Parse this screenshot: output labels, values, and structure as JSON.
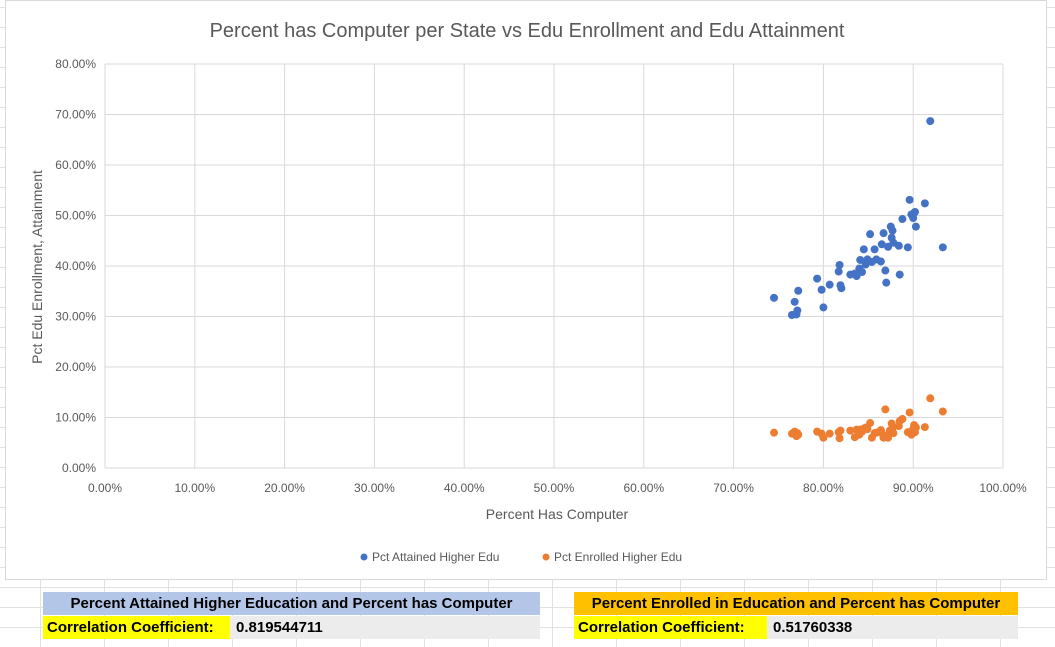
{
  "chart_data": {
    "type": "scatter",
    "title": "Percent has Computer per State vs Edu Enrollment and Edu Attainment",
    "xlabel": "Percent Has Computer",
    "ylabel": "Pct Edu Enrollment, Attainment",
    "xlim": [
      0,
      1
    ],
    "ylim": [
      0,
      0.8
    ],
    "x_ticks": [
      "0.00%",
      "10.00%",
      "20.00%",
      "30.00%",
      "40.00%",
      "50.00%",
      "60.00%",
      "70.00%",
      "80.00%",
      "90.00%",
      "100.00%"
    ],
    "y_ticks": [
      "0.00%",
      "10.00%",
      "20.00%",
      "30.00%",
      "40.00%",
      "50.00%",
      "60.00%",
      "70.00%",
      "80.00%"
    ],
    "grid": true,
    "legend_position": "bottom",
    "series": [
      {
        "name": "Pct Attained Higher Edu",
        "color": "#4472c4",
        "points": [
          [
            0.745,
            0.337
          ],
          [
            0.765,
            0.303
          ],
          [
            0.768,
            0.329
          ],
          [
            0.77,
            0.304
          ],
          [
            0.771,
            0.312
          ],
          [
            0.772,
            0.351
          ],
          [
            0.793,
            0.375
          ],
          [
            0.798,
            0.353
          ],
          [
            0.8,
            0.318
          ],
          [
            0.807,
            0.363
          ],
          [
            0.817,
            0.389
          ],
          [
            0.818,
            0.402
          ],
          [
            0.819,
            0.362
          ],
          [
            0.82,
            0.356
          ],
          [
            0.83,
            0.383
          ],
          [
            0.835,
            0.385
          ],
          [
            0.837,
            0.38
          ],
          [
            0.84,
            0.395
          ],
          [
            0.841,
            0.412
          ],
          [
            0.843,
            0.388
          ],
          [
            0.845,
            0.433
          ],
          [
            0.847,
            0.403
          ],
          [
            0.849,
            0.413
          ],
          [
            0.852,
            0.463
          ],
          [
            0.854,
            0.408
          ],
          [
            0.857,
            0.433
          ],
          [
            0.859,
            0.413
          ],
          [
            0.864,
            0.409
          ],
          [
            0.865,
            0.443
          ],
          [
            0.867,
            0.465
          ],
          [
            0.869,
            0.391
          ],
          [
            0.87,
            0.367
          ],
          [
            0.872,
            0.438
          ],
          [
            0.875,
            0.478
          ],
          [
            0.876,
            0.456
          ],
          [
            0.877,
            0.47
          ],
          [
            0.878,
            0.446
          ],
          [
            0.884,
            0.44
          ],
          [
            0.885,
            0.383
          ],
          [
            0.888,
            0.493
          ],
          [
            0.894,
            0.437
          ],
          [
            0.896,
            0.531
          ],
          [
            0.898,
            0.502
          ],
          [
            0.9,
            0.495
          ],
          [
            0.901,
            0.505
          ],
          [
            0.902,
            0.507
          ],
          [
            0.903,
            0.478
          ],
          [
            0.913,
            0.524
          ],
          [
            0.919,
            0.687
          ],
          [
            0.933,
            0.437
          ]
        ]
      },
      {
        "name": "Pct Enrolled Higher Edu",
        "color": "#ed7d31",
        "points": [
          [
            0.745,
            0.07
          ],
          [
            0.765,
            0.068
          ],
          [
            0.768,
            0.072
          ],
          [
            0.77,
            0.063
          ],
          [
            0.771,
            0.069
          ],
          [
            0.772,
            0.066
          ],
          [
            0.793,
            0.072
          ],
          [
            0.798,
            0.068
          ],
          [
            0.8,
            0.06
          ],
          [
            0.807,
            0.068
          ],
          [
            0.817,
            0.071
          ],
          [
            0.818,
            0.059
          ],
          [
            0.819,
            0.074
          ],
          [
            0.83,
            0.074
          ],
          [
            0.835,
            0.061
          ],
          [
            0.837,
            0.076
          ],
          [
            0.84,
            0.066
          ],
          [
            0.841,
            0.076
          ],
          [
            0.843,
            0.072
          ],
          [
            0.845,
            0.078
          ],
          [
            0.847,
            0.08
          ],
          [
            0.849,
            0.077
          ],
          [
            0.852,
            0.089
          ],
          [
            0.854,
            0.06
          ],
          [
            0.857,
            0.069
          ],
          [
            0.859,
            0.07
          ],
          [
            0.864,
            0.075
          ],
          [
            0.865,
            0.069
          ],
          [
            0.867,
            0.06
          ],
          [
            0.869,
            0.116
          ],
          [
            0.87,
            0.064
          ],
          [
            0.872,
            0.06
          ],
          [
            0.874,
            0.074
          ],
          [
            0.876,
            0.088
          ],
          [
            0.877,
            0.079
          ],
          [
            0.878,
            0.069
          ],
          [
            0.884,
            0.083
          ],
          [
            0.885,
            0.093
          ],
          [
            0.888,
            0.097
          ],
          [
            0.894,
            0.071
          ],
          [
            0.896,
            0.11
          ],
          [
            0.898,
            0.066
          ],
          [
            0.9,
            0.077
          ],
          [
            0.901,
            0.085
          ],
          [
            0.902,
            0.071
          ],
          [
            0.903,
            0.08
          ],
          [
            0.913,
            0.081
          ],
          [
            0.919,
            0.138
          ],
          [
            0.933,
            0.112
          ]
        ]
      }
    ]
  },
  "correlation_tables": [
    {
      "header": "Percent Attained Higher Education and Percent has Computer",
      "label": "Correlation Coefficient:",
      "value": "0.819544711",
      "header_color": "#b4c6e7"
    },
    {
      "header": "Percent Enrolled in Education and Percent has Computer",
      "label": "Correlation Coefficient:",
      "value": "0.51760338",
      "header_color": "#ffc000"
    }
  ]
}
